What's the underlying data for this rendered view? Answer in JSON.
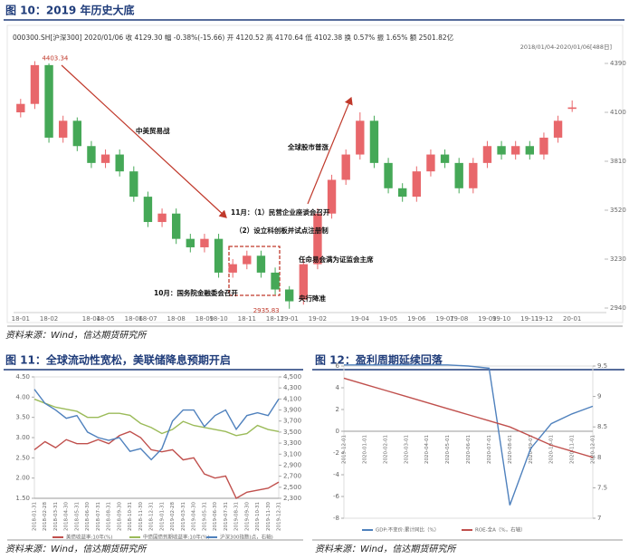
{
  "chart_data": [
    {
      "type": "candlestick",
      "title": "图 10：2019 年历史大底",
      "info": "000300.SH[沪深300]  2020/01/06  收 4129.30  幅 -0.38%(-15.66)  开 4120.52  高 4170.64  低 4102.38  换 0.57%  振 1.65%  额 2501.82亿",
      "range_label": "2018/01/04-2020/01/06[488日]",
      "categories": [
        "18-01",
        null,
        "18-02",
        null,
        null,
        "18-04",
        "18-05",
        null,
        "18-06",
        "18-07",
        null,
        "18-08",
        null,
        "18-09",
        "18-10",
        null,
        "18-11",
        null,
        "18-12",
        "19-01",
        null,
        "19-02",
        null,
        null,
        "19-04",
        null,
        "19-05",
        null,
        "19-06",
        null,
        "19-07",
        "19-08",
        null,
        "19-09",
        "19-10",
        null,
        "19-11",
        "19-12",
        null,
        "20-01"
      ],
      "open": [
        4100,
        4150,
        4380,
        3950,
        4050,
        3900,
        3800,
        3850,
        3750,
        3600,
        3450,
        3500,
        3350,
        3300,
        3350,
        3150,
        3200,
        3250,
        3150,
        3050,
        2990,
        3200,
        3500,
        3700,
        3850,
        4050,
        3800,
        3650,
        3600,
        3750,
        3850,
        3800,
        3650,
        3800,
        3900,
        3850,
        3900,
        3850,
        3950,
        4120.52
      ],
      "close": [
        4150,
        4380,
        3950,
        4050,
        3900,
        3800,
        3850,
        3750,
        3600,
        3450,
        3500,
        3350,
        3300,
        3350,
        3150,
        3200,
        3250,
        3150,
        3050,
        2980,
        3200,
        3500,
        3700,
        3850,
        4050,
        3800,
        3650,
        3600,
        3750,
        3850,
        3800,
        3650,
        3800,
        3900,
        3850,
        3900,
        3850,
        3950,
        4050,
        4129.3
      ],
      "high": [
        4180,
        4403.34,
        4390,
        4080,
        4070,
        3930,
        3880,
        3880,
        3780,
        3630,
        3530,
        3530,
        3380,
        3380,
        3380,
        3230,
        3280,
        3280,
        3180,
        3070,
        3230,
        3530,
        3730,
        3880,
        4100,
        4080,
        3830,
        3680,
        3780,
        3880,
        3880,
        3830,
        3830,
        3930,
        3930,
        3930,
        3930,
        3980,
        4080,
        4170.64
      ],
      "low": [
        4070,
        4120,
        3920,
        3920,
        3870,
        3770,
        3770,
        3720,
        3570,
        3420,
        3420,
        3320,
        3270,
        3270,
        3120,
        3120,
        3170,
        3120,
        3020,
        2935.83,
        2960,
        3170,
        3470,
        3670,
        3820,
        3770,
        3620,
        3570,
        3570,
        3720,
        3770,
        3620,
        3620,
        3770,
        3820,
        3820,
        3820,
        3820,
        3920,
        4102.38
      ],
      "up_color": "#e8676b",
      "down_color": "#45a857",
      "ylim": [
        2940,
        4390
      ],
      "yticks": [
        2940,
        3230,
        3520,
        3810,
        4100,
        4390
      ],
      "annotations": [
        "中美贸易战",
        "全球股市普涨",
        "11月：（1）民营企业座谈会召开",
        "（2）设立科创板并试点注册制",
        "任命易会满为证监会主席",
        "10月：国务院金融委会召开",
        "央行降准"
      ],
      "source": "资料来源：Wind，信达期货研究所"
    },
    {
      "type": "line",
      "title": "图 11：全球流动性宽松，美联储降息预期开启",
      "categories": [
        "2018-01-31",
        "2018-02-28",
        "2018-03-31",
        "2018-04-30",
        "2018-05-31",
        "2018-06-30",
        "2018-07-31",
        "2018-08-31",
        "2018-09-30",
        "2018-10-31",
        "2018-11-30",
        "2018-12-31",
        "2019-01-31",
        "2019-02-28",
        "2019-03-31",
        "2019-04-30",
        "2019-05-31",
        "2019-06-30",
        "2019-07-31",
        "2019-08-31",
        "2019-09-30",
        "2019-10-31",
        "2019-11-30",
        "2019-12-31"
      ],
      "series": [
        {
          "name": "美债收益率:10年(%)",
          "color": "#c0504d",
          "values": [
            2.7,
            2.9,
            2.75,
            2.95,
            2.85,
            2.85,
            2.95,
            2.85,
            3.05,
            3.15,
            3.0,
            2.7,
            2.65,
            2.7,
            2.45,
            2.5,
            2.1,
            2.0,
            2.05,
            1.5,
            1.65,
            1.7,
            1.75,
            1.9
          ]
        },
        {
          "name": "中债国债到期收益率:10年(%)",
          "color": "#9bbb59",
          "values": [
            3.95,
            3.85,
            3.75,
            3.7,
            3.65,
            3.5,
            3.5,
            3.6,
            3.6,
            3.55,
            3.35,
            3.25,
            3.1,
            3.2,
            3.4,
            3.3,
            3.25,
            3.2,
            3.15,
            3.05,
            3.1,
            3.3,
            3.2,
            3.15
          ]
        },
        {
          "name": "沪深300指数(点，右轴)",
          "color": "#4f81bd",
          "axis": "y2",
          "values": [
            4275,
            4020,
            3900,
            3750,
            3800,
            3500,
            3400,
            3350,
            3400,
            3150,
            3200,
            3000,
            3200,
            3700,
            3900,
            3900,
            3600,
            3800,
            3900,
            3550,
            3800,
            3850,
            3800,
            4100
          ]
        }
      ],
      "ylim": [
        1.5,
        4.5
      ],
      "yticks": [
        {
          "value": 1.5,
          "label": "1.50"
        },
        {
          "value": 2,
          "label": "2.00"
        },
        {
          "value": 2.5,
          "label": "2.50"
        },
        {
          "value": 3,
          "label": "3.00"
        },
        {
          "value": 3.5,
          "label": "3.50"
        },
        {
          "value": 4,
          "label": "4.00"
        },
        {
          "value": 4.5,
          "label": "4.50"
        }
      ],
      "y2lim": [
        2300,
        4500
      ],
      "y2ticks": [
        {
          "value": 2300,
          "label": "2,300"
        },
        {
          "value": 2500,
          "label": "2,500"
        },
        {
          "value": 2700,
          "label": "2,700"
        },
        {
          "value": 2900,
          "label": "2,900"
        },
        {
          "value": 3100,
          "label": "3,100"
        },
        {
          "value": 3300,
          "label": "3,300"
        },
        {
          "value": 3500,
          "label": "3,500"
        },
        {
          "value": 3700,
          "label": "3,700"
        },
        {
          "value": 3900,
          "label": "3,900"
        },
        {
          "value": 4100,
          "label": "4,100"
        },
        {
          "value": 4300,
          "label": "4,300"
        },
        {
          "value": 4500,
          "label": "4,500"
        }
      ],
      "source": "资料来源：Wind，信达期货研究所"
    },
    {
      "type": "line",
      "title": "图 12：盈利周期延续回落",
      "categories": [
        "2019-12-01",
        "2020-01-01",
        "2020-02-01",
        "2020-03-01",
        "2020-04-01",
        "2020-05-01",
        "2020-06-01",
        "2020-07-01",
        "2020-08-01",
        "2020-09-01",
        "2020-10-01",
        "2020-11-01",
        "2020-12-01"
      ],
      "series": [
        {
          "name": "GDP:不变价:累计同比（%）",
          "color": "#4f81bd",
          "values": [
            6.1,
            6.1,
            6.1,
            6.1,
            6.1,
            6.1,
            6.0,
            5.8,
            -6.8,
            -1.6,
            0.7,
            1.6,
            2.3
          ]
        },
        {
          "name": "ROE-全A（%，右轴）",
          "color": "#c0504d",
          "axis": "y2",
          "values": [
            9.3,
            9.2,
            9.1,
            9.0,
            8.9,
            8.8,
            8.7,
            8.6,
            8.5,
            8.35,
            8.2,
            8.1,
            8.0
          ]
        }
      ],
      "ylim": [
        -8,
        6
      ],
      "yticks": [
        -8,
        -6,
        -4,
        -2,
        0,
        2,
        4,
        6
      ],
      "y2lim": [
        7,
        9.5
      ],
      "y2ticks": [
        7,
        7.5,
        8,
        8.5,
        9,
        9.5
      ],
      "source": "资料来源：Wind，信达期货研究所"
    }
  ]
}
